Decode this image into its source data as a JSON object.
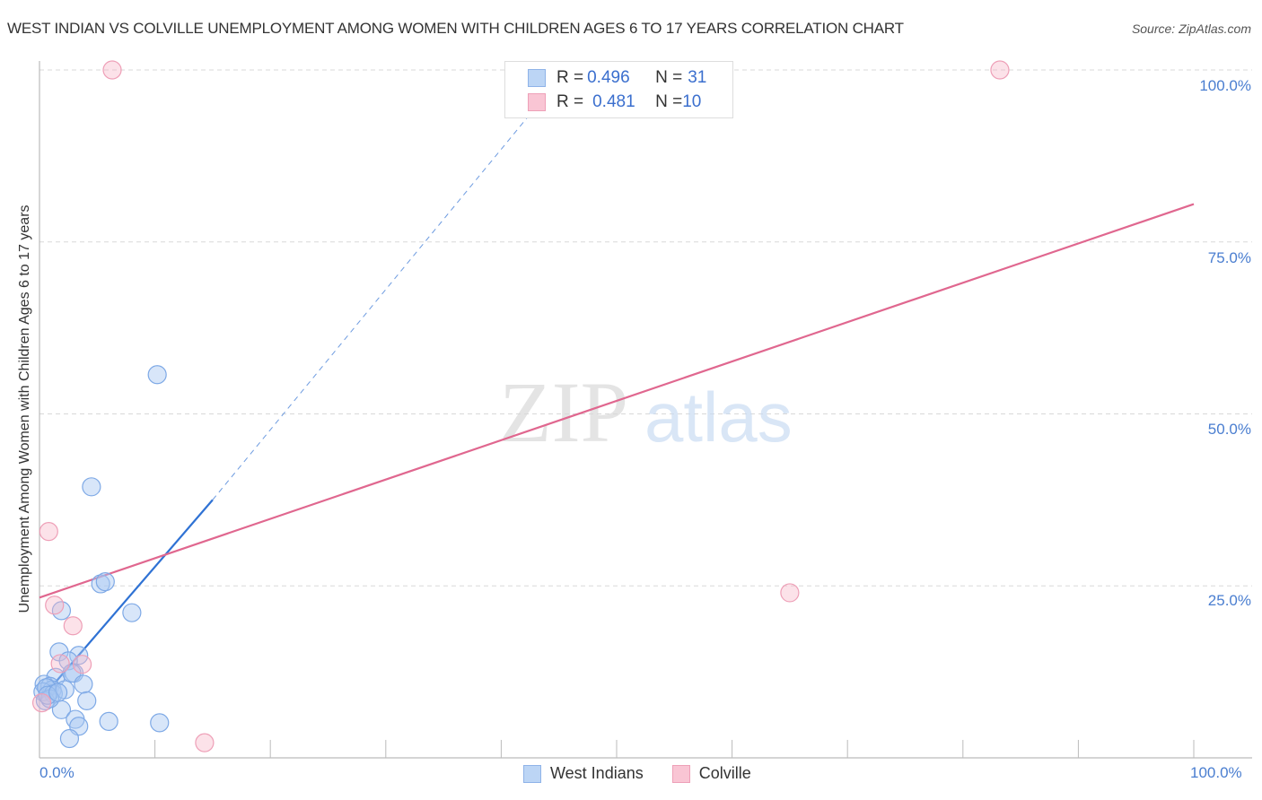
{
  "header": {
    "title": "WEST INDIAN VS COLVILLE UNEMPLOYMENT AMONG WOMEN WITH CHILDREN AGES 6 TO 17 YEARS CORRELATION CHART",
    "source": "Source: ZipAtlas.com"
  },
  "watermark": {
    "zip": "ZIP",
    "atlas": "atlas"
  },
  "legend": {
    "rows": [
      {
        "r_label": "R = ",
        "r_value": "0.496",
        "n_label": "N = ",
        "n_value": "31",
        "color": "#a9c8f2"
      },
      {
        "r_label": "R = ",
        "r_value": "0.481",
        "n_label": "N = ",
        "n_value": "10",
        "color": "#f7b6c9"
      }
    ]
  },
  "bottom_legend": {
    "series1": "West Indians",
    "series2": "Colville"
  },
  "axes": {
    "ylabel": "Unemployment Among Women with Children Ages 6 to 17 years",
    "yticks": [
      "100.0%",
      "75.0%",
      "50.0%",
      "25.0%"
    ],
    "xticks": [
      "0.0%",
      "100.0%"
    ]
  },
  "colors": {
    "blue": "#3b7dd8",
    "blue_fill": "#a9c8f2",
    "pink": "#e0678f",
    "pink_fill": "#f7b6c9",
    "tick_text": "#4a7ed0"
  },
  "chart_data": {
    "type": "scatter",
    "title": "WEST INDIAN VS COLVILLE UNEMPLOYMENT AMONG WOMEN WITH CHILDREN AGES 6 TO 17 YEARS CORRELATION CHART",
    "xlabel": "",
    "ylabel": "Unemployment Among Women with Children Ages 6 to 17 years",
    "xlim": [
      0,
      100
    ],
    "ylim": [
      0,
      100
    ],
    "x_ticks": [
      "0.0%",
      "100.0%"
    ],
    "y_ticks": [
      "25.0%",
      "50.0%",
      "75.0%",
      "100.0%"
    ],
    "grid": true,
    "legend_position": "top-center and bottom",
    "series": [
      {
        "name": "West Indians",
        "R": 0.496,
        "N": 31,
        "color": "#3b7dd8",
        "points": [
          [
            10.2,
            55.7
          ],
          [
            4.5,
            39.4
          ],
          [
            5.3,
            25.3
          ],
          [
            5.7,
            25.6
          ],
          [
            1.9,
            21.4
          ],
          [
            8.0,
            21.1
          ],
          [
            1.7,
            15.4
          ],
          [
            3.4,
            14.9
          ],
          [
            2.5,
            14.1
          ],
          [
            3.0,
            12.3
          ],
          [
            1.4,
            11.7
          ],
          [
            2.8,
            12.3
          ],
          [
            0.4,
            10.7
          ],
          [
            0.9,
            10.4
          ],
          [
            1.1,
            9.9
          ],
          [
            0.3,
            9.6
          ],
          [
            0.6,
            10.2
          ],
          [
            1.2,
            9.3
          ],
          [
            2.2,
            9.9
          ],
          [
            3.8,
            10.7
          ],
          [
            4.1,
            8.3
          ],
          [
            1.9,
            7.0
          ],
          [
            0.5,
            8.3
          ],
          [
            0.9,
            8.6
          ],
          [
            3.1,
            5.6
          ],
          [
            3.4,
            4.6
          ],
          [
            2.6,
            2.8
          ],
          [
            6.0,
            5.3
          ],
          [
            10.4,
            5.1
          ],
          [
            0.7,
            9.1
          ],
          [
            1.6,
            9.5
          ]
        ],
        "trendline": {
          "x": [
            0,
            15.0
          ],
          "y": [
            8.3,
            37.5
          ],
          "dashed_extension_to": [
            43.2,
            95
          ]
        }
      },
      {
        "name": "Colville",
        "R": 0.481,
        "N": 10,
        "color": "#e0678f",
        "points": [
          [
            6.3,
            100
          ],
          [
            83.2,
            100
          ],
          [
            0.8,
            32.9
          ],
          [
            1.3,
            22.2
          ],
          [
            2.9,
            19.2
          ],
          [
            1.8,
            13.7
          ],
          [
            3.7,
            13.6
          ],
          [
            65.0,
            24.0
          ],
          [
            14.3,
            2.2
          ],
          [
            0.2,
            8.0
          ]
        ],
        "trendline": {
          "x": [
            0,
            100
          ],
          "y": [
            23.3,
            80.5
          ]
        }
      }
    ]
  }
}
